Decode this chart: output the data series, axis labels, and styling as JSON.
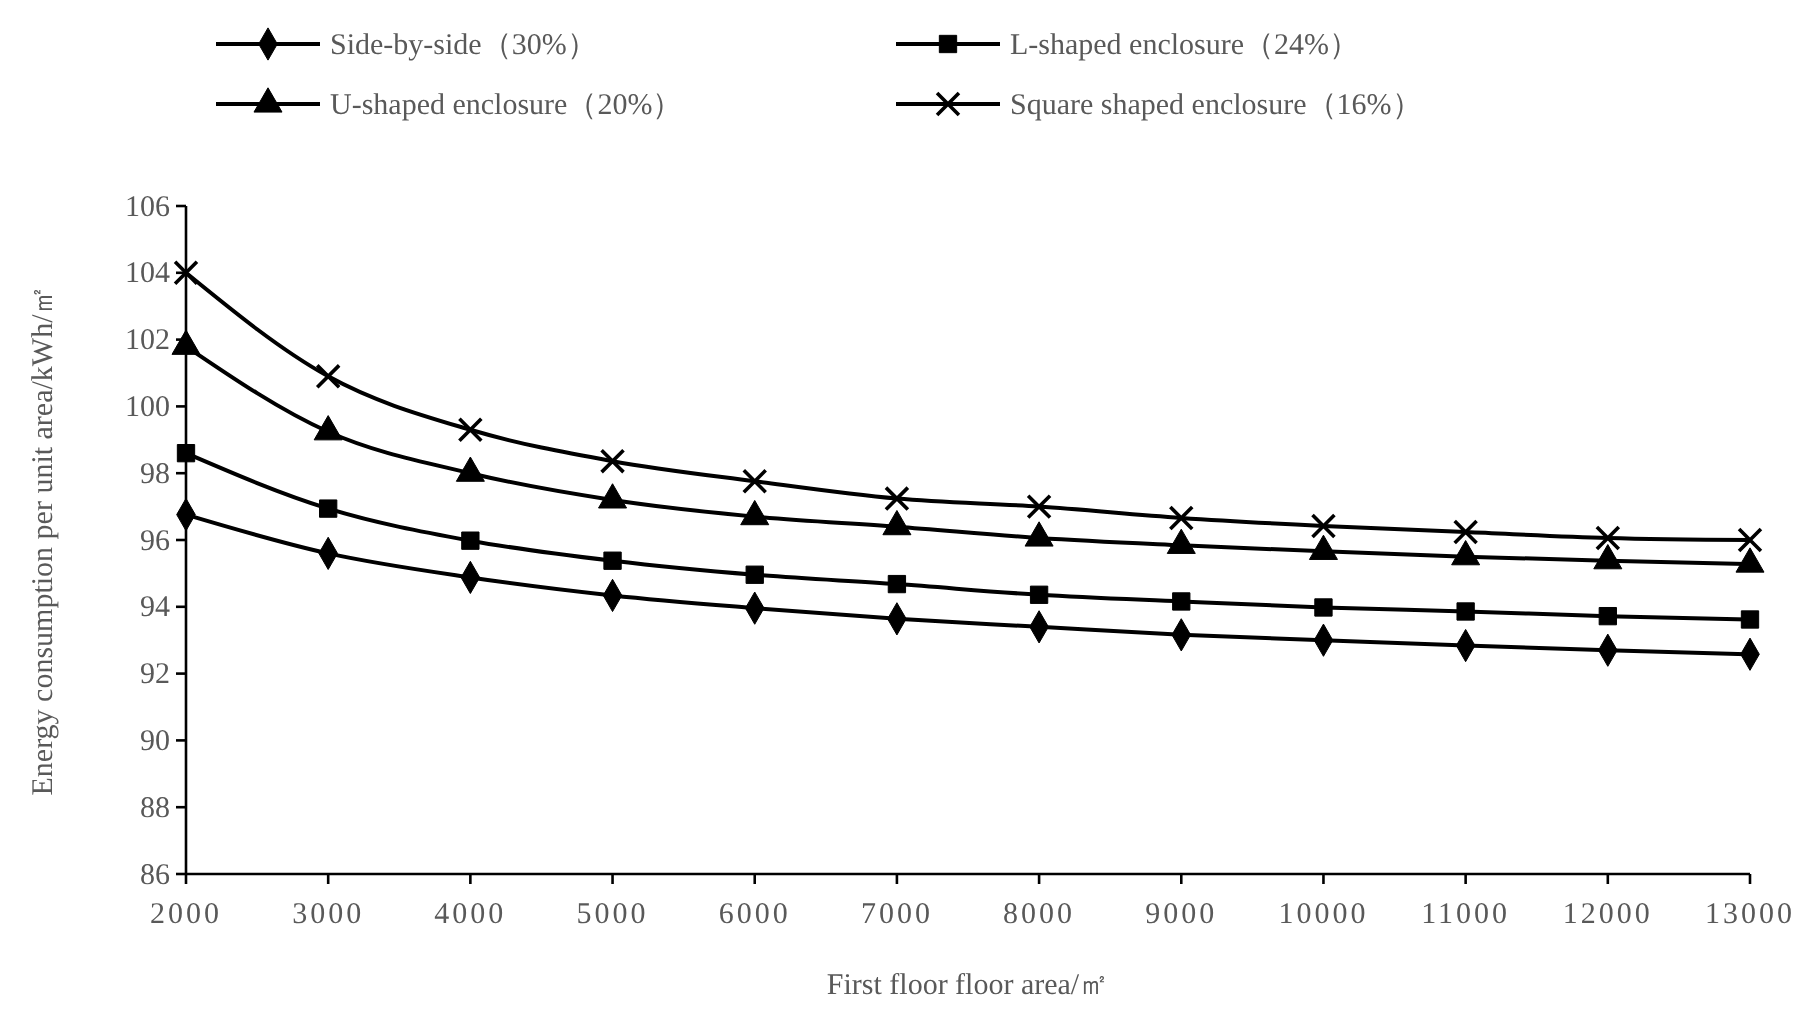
{
  "chart_data": {
    "type": "line",
    "xlabel": "First floor floor area/㎡",
    "ylabel": "Energy consumption per unit area/kWh/㎡",
    "x": [
      2000,
      3000,
      4000,
      5000,
      6000,
      7000,
      8000,
      9000,
      10000,
      11000,
      12000,
      13000
    ],
    "xlim": [
      2000,
      13000
    ],
    "xticks": [
      2000,
      3000,
      4000,
      5000,
      6000,
      7000,
      8000,
      9000,
      10000,
      11000,
      12000,
      13000
    ],
    "ylim": [
      86,
      106
    ],
    "yticks": [
      86,
      88,
      90,
      92,
      94,
      96,
      98,
      100,
      102,
      104,
      106
    ],
    "grid": false,
    "legend": "top",
    "line_style": "solid",
    "series": [
      {
        "name": "Side-by-side（30%）",
        "color": "#000000",
        "marker": "diamond",
        "values": [
          96.76,
          95.6,
          94.88,
          94.34,
          93.96,
          93.64,
          93.4,
          93.16,
          93.0,
          92.84,
          92.7,
          92.58
        ]
      },
      {
        "name": "L-shaped enclosure（24%）",
        "color": "#000000",
        "marker": "square",
        "values": [
          98.6,
          96.94,
          95.98,
          95.38,
          94.96,
          94.68,
          94.36,
          94.16,
          93.98,
          93.86,
          93.72,
          93.62
        ]
      },
      {
        "name": "U-shaped enclosure（20%）",
        "color": "#000000",
        "marker": "triangle",
        "values": [
          101.8,
          99.24,
          98.0,
          97.2,
          96.7,
          96.4,
          96.06,
          95.84,
          95.66,
          95.5,
          95.38,
          95.28
        ]
      },
      {
        "name": "Square shaped enclosure（16%）",
        "color": "#000000",
        "marker": "cross",
        "values": [
          104.0,
          100.9,
          99.3,
          98.36,
          97.76,
          97.24,
          97.0,
          96.66,
          96.42,
          96.24,
          96.06,
          96.0
        ]
      }
    ]
  }
}
